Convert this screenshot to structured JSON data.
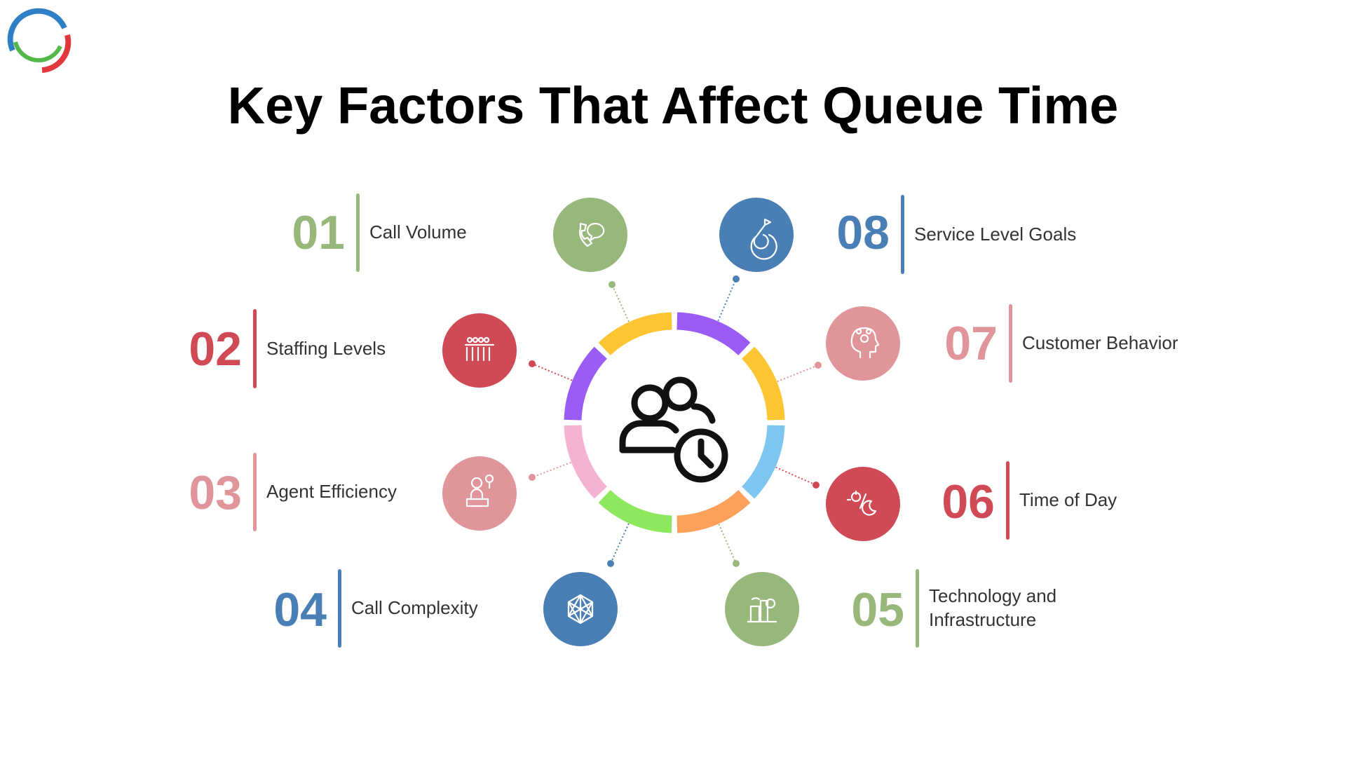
{
  "header": {
    "title": "Key Factors That Affect Queue Time"
  },
  "factors": [
    {
      "number": "01",
      "label": "Call Volume"
    },
    {
      "number": "02",
      "label": "Staffing Levels"
    },
    {
      "number": "03",
      "label": "Agent Efficiency"
    },
    {
      "number": "04",
      "label": "Call Complexity"
    },
    {
      "number": "05",
      "label": "Technology and Infrastructure"
    },
    {
      "number": "06",
      "label": "Time of Day"
    },
    {
      "number": "07",
      "label": "Customer Behavior"
    },
    {
      "number": "08",
      "label": "Service Level Goals"
    }
  ]
}
